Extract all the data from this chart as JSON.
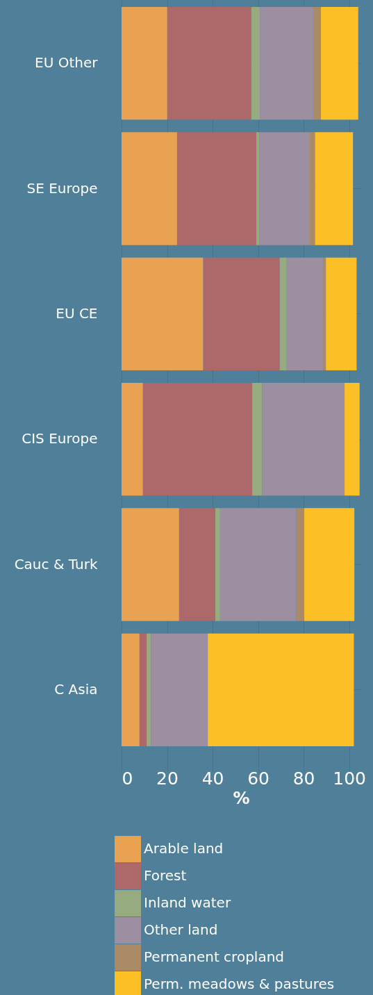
{
  "chart_data": {
    "type": "bar",
    "orientation": "horizontal",
    "stacked": true,
    "xlabel": "%",
    "categories": [
      "EU Other",
      "SE Europe",
      "EU CE",
      "CIS Europe",
      "Cauc & Turk",
      "C Asia"
    ],
    "series": [
      {
        "name": "Arable land",
        "color": "#e8a251",
        "values": [
          20.1,
          24.4,
          35.9,
          9.4,
          25.3,
          7.9
        ]
      },
      {
        "name": "Forest",
        "color": "#ad6969",
        "values": [
          36.9,
          34.8,
          33.6,
          48.0,
          15.9,
          3.1
        ]
      },
      {
        "name": "Inland water",
        "color": "#96ab7f",
        "values": [
          3.8,
          1.4,
          3.1,
          4.4,
          2.1,
          2.0
        ]
      },
      {
        "name": "Other land",
        "color": "#9d8fa2",
        "values": [
          23.7,
          22.1,
          16.1,
          36.2,
          33.5,
          24.9
        ]
      },
      {
        "name": "Permanent cropland",
        "color": "#ab8b65",
        "values": [
          3.1,
          2.3,
          1.1,
          0,
          3.5,
          0
        ]
      },
      {
        "name": "Perm. meadows & pastures",
        "color": "#fdbf26",
        "values": [
          16.4,
          16.7,
          13.5,
          6.6,
          22.0,
          64.2
        ]
      }
    ],
    "xlim": [
      0,
      105
    ],
    "xticks": [
      0,
      20,
      40,
      60,
      80,
      100
    ],
    "grid": true,
    "legend": "bottom"
  }
}
